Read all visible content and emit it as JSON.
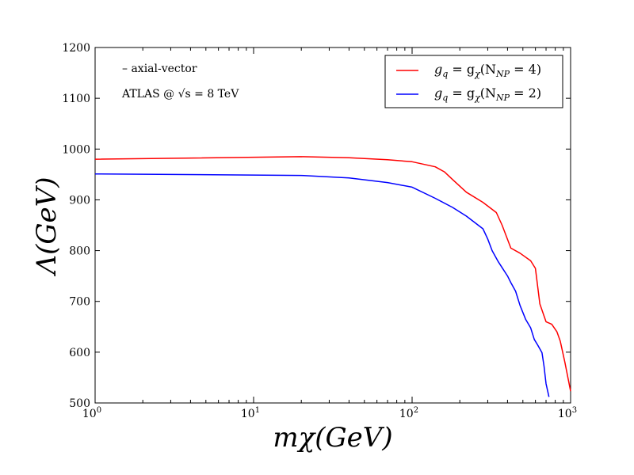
{
  "chart_data": {
    "type": "line",
    "title": "",
    "xlabel": "mχ(GeV)",
    "ylabel": "Λ(GeV)",
    "xscale": "log",
    "xlim": [
      1,
      1000
    ],
    "ylim": [
      500,
      1200
    ],
    "xticks": [
      {
        "value": 1,
        "base": "10",
        "exp": "0"
      },
      {
        "value": 10,
        "base": "10",
        "exp": "1"
      },
      {
        "value": 100,
        "base": "10",
        "exp": "2"
      },
      {
        "value": 1000,
        "base": "10",
        "exp": "3"
      }
    ],
    "yticks": [
      "500",
      "600",
      "700",
      "800",
      "900",
      "1000",
      "1100",
      "1200"
    ],
    "annotations": [
      "– axial-vector",
      "ATLAS @ √s = 8 TeV"
    ],
    "legend_position": "top-right",
    "series": [
      {
        "name": "gq = gχ(NNP = 4)",
        "color": "#ff0000",
        "x": [
          1,
          20,
          40,
          70,
          100,
          140,
          160,
          180,
          220,
          280,
          340,
          370,
          420,
          480,
          560,
          600,
          640,
          700,
          760,
          820,
          860,
          920,
          1000
        ],
        "y": [
          980,
          985,
          983,
          979,
          975,
          965,
          955,
          940,
          915,
          895,
          875,
          850,
          805,
          795,
          780,
          765,
          695,
          660,
          655,
          640,
          622,
          580,
          523
        ]
      },
      {
        "name": "gq = gχ(NNP = 2)",
        "color": "#0000ff",
        "x": [
          1,
          20,
          40,
          70,
          100,
          140,
          180,
          220,
          280,
          300,
          320,
          350,
          400,
          420,
          450,
          480,
          520,
          560,
          590,
          620,
          660,
          680,
          700,
          730
        ],
        "y": [
          951,
          948,
          943,
          934,
          925,
          903,
          885,
          868,
          843,
          823,
          800,
          778,
          750,
          737,
          720,
          692,
          665,
          648,
          625,
          614,
          599,
          572,
          538,
          512
        ]
      }
    ],
    "legend_entries": [
      {
        "lhs": "g",
        "lhs_sub": "q",
        "mid": " = g",
        "mid_sub": "χ",
        "open": "(N",
        "n_sub": "NP",
        "close": " = 4)"
      },
      {
        "lhs": "g",
        "lhs_sub": "q",
        "mid": " = g",
        "mid_sub": "χ",
        "open": "(N",
        "n_sub": "NP",
        "close": " = 2)"
      }
    ]
  }
}
